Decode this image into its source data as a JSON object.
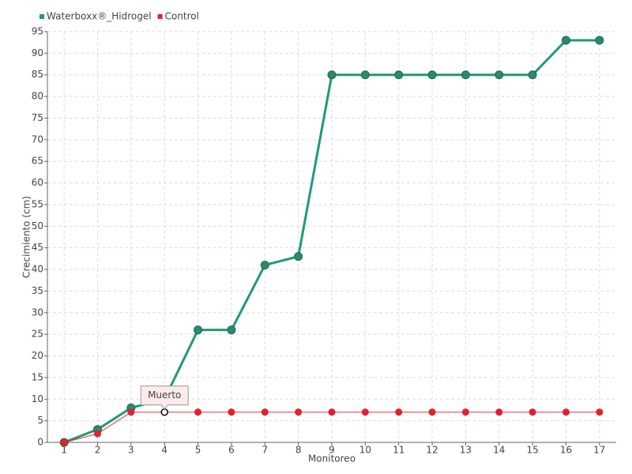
{
  "chart_data": {
    "type": "line",
    "x_label": "Monitoreo",
    "y_label": "Crecimiento (cm)",
    "categories": [
      "1",
      "2",
      "3",
      "4",
      "5",
      "6",
      "7",
      "8",
      "9",
      "10",
      "11",
      "12",
      "13",
      "14",
      "15",
      "16",
      "17"
    ],
    "series": [
      {
        "name": "Waterboxx®_Hidrogel",
        "color": "#1f9a78",
        "values": [
          0,
          3,
          8,
          10,
          26,
          26,
          41,
          43,
          85,
          85,
          85,
          85,
          85,
          85,
          85,
          93,
          93
        ]
      },
      {
        "name": "Control",
        "color": "#e3202c",
        "values": [
          0,
          2,
          7,
          7,
          7,
          7,
          7,
          7,
          7,
          7,
          7,
          7,
          7,
          7,
          7,
          7,
          7
        ]
      }
    ],
    "annotations": [
      {
        "text": "Muerto",
        "series": "Control",
        "category": "4"
      }
    ],
    "ylim": [
      0,
      95
    ],
    "yticks": [
      0,
      5,
      10,
      15,
      20,
      25,
      30,
      35,
      40,
      45,
      50,
      55,
      60,
      65,
      70,
      75,
      80,
      85,
      90,
      95
    ],
    "grid": true,
    "legend": "top-left"
  }
}
